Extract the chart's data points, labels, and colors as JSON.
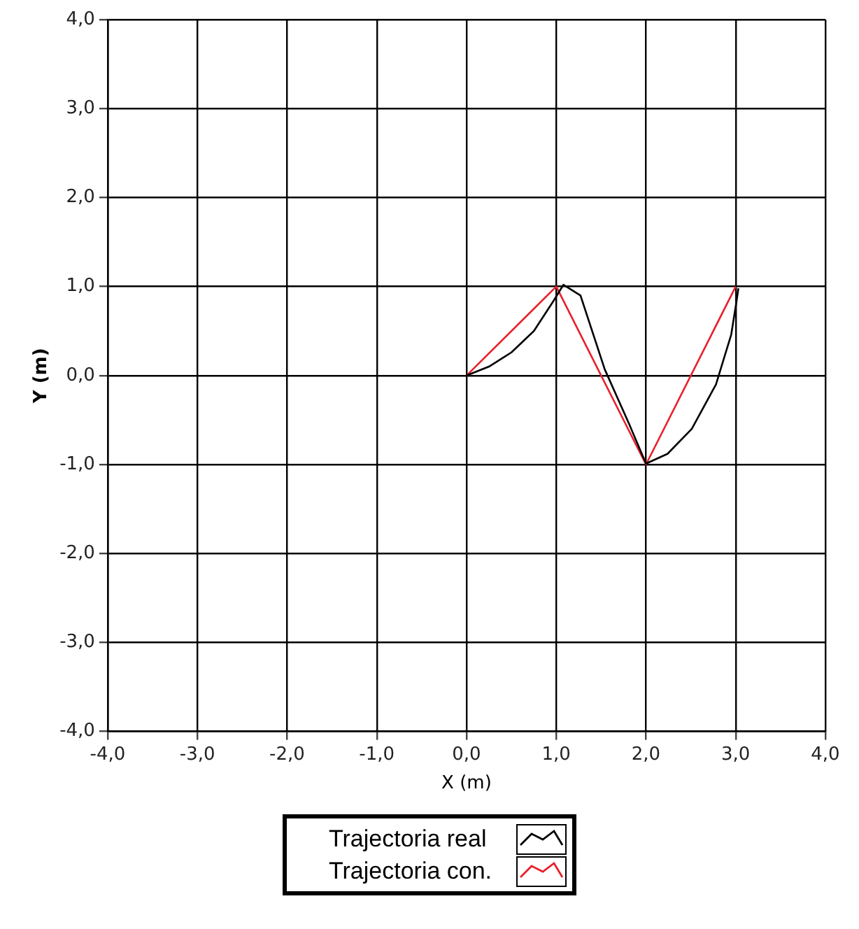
{
  "chart_data": {
    "type": "line",
    "xlabel": "X (m)",
    "ylabel": "Y (m)",
    "xlim": [
      -4,
      4
    ],
    "ylim": [
      -4,
      4
    ],
    "xticks": [
      {
        "value": -4,
        "label": "-4,0"
      },
      {
        "value": -3,
        "label": "-3,0"
      },
      {
        "value": -2,
        "label": "-2,0"
      },
      {
        "value": -1,
        "label": "-1,0"
      },
      {
        "value": 0,
        "label": "0,0"
      },
      {
        "value": 1,
        "label": "1,0"
      },
      {
        "value": 2,
        "label": "2,0"
      },
      {
        "value": 3,
        "label": "3,0"
      },
      {
        "value": 4,
        "label": "4,0"
      }
    ],
    "yticks": [
      {
        "value": -4,
        "label": "-4,0"
      },
      {
        "value": -3,
        "label": "-3,0"
      },
      {
        "value": -2,
        "label": "-2,0"
      },
      {
        "value": -1,
        "label": "-1,0"
      },
      {
        "value": 0,
        "label": "0,0"
      },
      {
        "value": 1,
        "label": "1,0"
      },
      {
        "value": 2,
        "label": "2,0"
      },
      {
        "value": 3,
        "label": "3,0"
      },
      {
        "value": 4,
        "label": "4,0"
      }
    ],
    "grid": true,
    "legend": "bottom",
    "marker": "none",
    "line_style": "solid",
    "series": [
      {
        "name": "Trajectoria real",
        "color": "#000000",
        "x": [
          0,
          0.25,
          0.5,
          0.75,
          0.97,
          1.08,
          1.27,
          1.54,
          1.81,
          2.0,
          2.24,
          2.51,
          2.78,
          2.95,
          3.01,
          3.03
        ],
        "values": [
          0,
          0.1,
          0.26,
          0.5,
          0.84,
          1.02,
          0.9,
          0.07,
          -0.54,
          -0.99,
          -0.88,
          -0.6,
          -0.1,
          0.46,
          0.84,
          0.98
        ]
      },
      {
        "name": "Trajectoria con.",
        "color": "#e8202a",
        "x": [
          0,
          1,
          2,
          3
        ],
        "values": [
          0,
          1,
          -1,
          1
        ]
      }
    ]
  }
}
